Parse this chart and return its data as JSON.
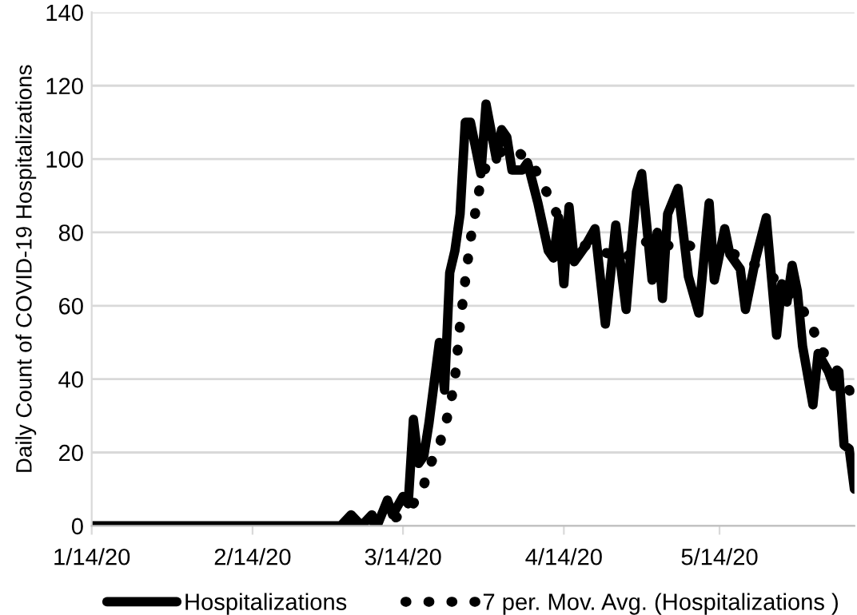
{
  "chart_data": {
    "type": "line",
    "ylabel": "Daily Count of COVID-19 Hospitalizations",
    "xlim": [
      "2020-01-14",
      "2020-06-09"
    ],
    "ylim": [
      0,
      140
    ],
    "yticks": [
      0,
      20,
      40,
      60,
      80,
      100,
      120,
      140
    ],
    "xticks": [
      {
        "value": "2020-01-14",
        "label": "1/14/20"
      },
      {
        "value": "2020-02-14",
        "label": "2/14/20"
      },
      {
        "value": "2020-03-14",
        "label": "3/14/20"
      },
      {
        "value": "2020-04-14",
        "label": "4/14/20"
      },
      {
        "value": "2020-05-14",
        "label": "5/14/20"
      }
    ],
    "grid": "y",
    "legend": "bottom",
    "series": [
      {
        "name": "Hospitalizations",
        "color": "#000000",
        "line_style": "solid",
        "x": [
          "2020-01-14",
          "2020-03-02",
          "2020-03-04",
          "2020-03-06",
          "2020-03-08",
          "2020-03-09",
          "2020-03-11",
          "2020-03-12",
          "2020-03-14",
          "2020-03-15",
          "2020-03-16",
          "2020-03-17",
          "2020-03-18",
          "2020-03-19",
          "2020-03-20",
          "2020-03-21",
          "2020-03-22",
          "2020-03-23",
          "2020-03-24",
          "2020-03-25",
          "2020-03-26",
          "2020-03-27",
          "2020-03-29",
          "2020-03-30",
          "2020-04-01",
          "2020-04-02",
          "2020-04-03",
          "2020-04-04",
          "2020-04-06",
          "2020-04-07",
          "2020-04-09",
          "2020-04-11",
          "2020-04-12",
          "2020-04-13",
          "2020-04-14",
          "2020-04-15",
          "2020-04-16",
          "2020-04-18",
          "2020-04-20",
          "2020-04-22",
          "2020-04-24",
          "2020-04-26",
          "2020-04-27",
          "2020-04-28",
          "2020-04-29",
          "2020-05-01",
          "2020-05-02",
          "2020-05-03",
          "2020-05-04",
          "2020-05-06",
          "2020-05-08",
          "2020-05-10",
          "2020-05-12",
          "2020-05-13",
          "2020-05-15",
          "2020-05-16",
          "2020-05-18",
          "2020-05-19",
          "2020-05-21",
          "2020-05-23",
          "2020-05-25",
          "2020-05-26",
          "2020-05-27",
          "2020-05-28",
          "2020-05-29",
          "2020-05-30",
          "2020-06-01",
          "2020-06-02",
          "2020-06-04",
          "2020-06-05",
          "2020-06-06",
          "2020-06-07",
          "2020-06-08",
          "2020-06-09"
        ],
        "values": [
          0,
          0,
          3,
          0,
          3,
          0,
          7,
          3,
          8,
          6,
          29,
          17,
          19,
          28,
          39,
          50,
          37,
          69,
          75,
          85,
          110,
          110,
          96,
          115,
          100,
          108,
          106,
          97,
          97,
          99,
          88,
          75,
          73,
          84,
          66,
          87,
          72,
          76,
          81,
          55,
          82,
          59,
          76,
          91,
          96,
          67,
          80,
          62,
          85,
          92,
          68,
          58,
          88,
          67,
          81,
          74,
          70,
          59,
          73,
          84,
          52,
          66,
          61,
          71,
          64,
          49,
          33,
          47,
          42,
          38,
          42,
          22,
          21,
          10
        ]
      },
      {
        "name": "7 per. Mov. Avg. (Hospitalizations )",
        "color": "#000000",
        "line_style": "dotted",
        "x": [
          "2020-03-04",
          "2020-03-07",
          "2020-03-10",
          "2020-03-12",
          "2020-03-14",
          "2020-03-16",
          "2020-03-18",
          "2020-03-19",
          "2020-03-21",
          "2020-03-22",
          "2020-03-23",
          "2020-03-24",
          "2020-03-25",
          "2020-03-26",
          "2020-03-27",
          "2020-03-28",
          "2020-03-29",
          "2020-03-30",
          "2020-04-01",
          "2020-04-03",
          "2020-04-05",
          "2020-04-07",
          "2020-04-09",
          "2020-04-11",
          "2020-04-13",
          "2020-04-15",
          "2020-04-17",
          "2020-04-19",
          "2020-04-21",
          "2020-04-23",
          "2020-04-25",
          "2020-04-27",
          "2020-04-29",
          "2020-05-01",
          "2020-05-03",
          "2020-05-05",
          "2020-05-07",
          "2020-05-09",
          "2020-05-11",
          "2020-05-13",
          "2020-05-15",
          "2020-05-17",
          "2020-05-19",
          "2020-05-21",
          "2020-05-23",
          "2020-05-25",
          "2020-05-27",
          "2020-05-29",
          "2020-05-30",
          "2020-06-01",
          "2020-06-02",
          "2020-06-05",
          "2020-06-07",
          "2020-06-09"
        ],
        "values": [
          0,
          1,
          1,
          2,
          3,
          6,
          11,
          16,
          22,
          27,
          32,
          40,
          55,
          67,
          78,
          86,
          94,
          98,
          101,
          103,
          102,
          100,
          96,
          90,
          84,
          79,
          77,
          76,
          75,
          74,
          73,
          74,
          77,
          78,
          77,
          76,
          77,
          76,
          75,
          75,
          75,
          74,
          73,
          71,
          69,
          67,
          64,
          61,
          59,
          54,
          49,
          44,
          39,
          35
        ]
      }
    ]
  }
}
